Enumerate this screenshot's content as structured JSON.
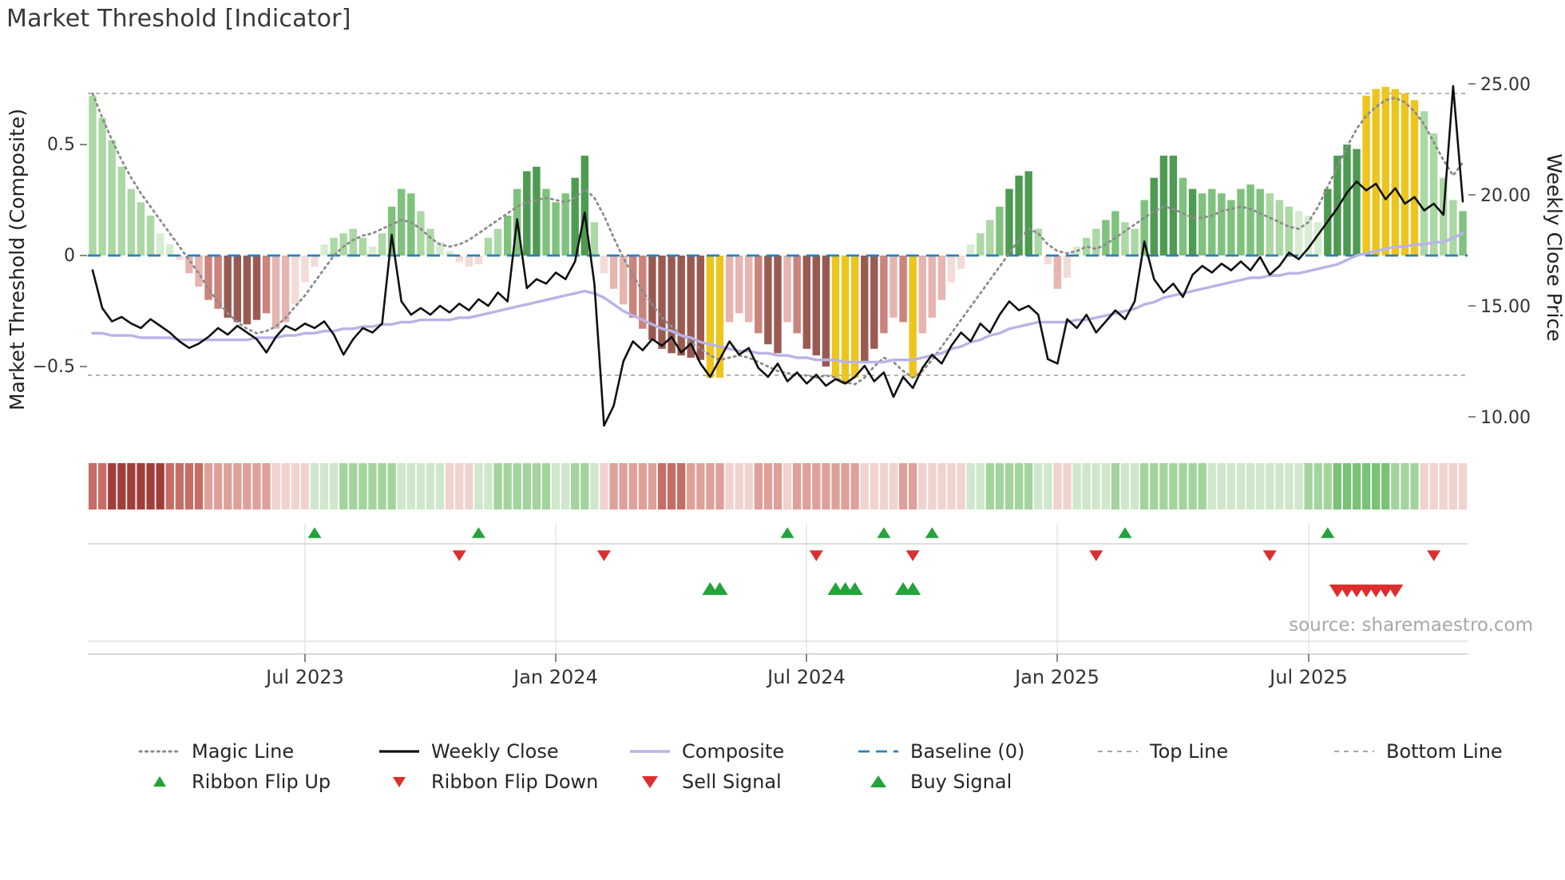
{
  "title": "Market Threshold [Indicator]",
  "source": "source: sharemaestro.com",
  "axes": {
    "left_label": "Market Threshold (Composite)",
    "right_label": "Weekly Close Price",
    "left_ticks": [
      "0.5",
      "0",
      "−0.5"
    ],
    "right_ticks": [
      "25.00",
      "20.00",
      "15.00",
      "10.00"
    ]
  },
  "legend": [
    {
      "label": "Magic Line"
    },
    {
      "label": "Weekly Close"
    },
    {
      "label": "Composite"
    },
    {
      "label": "Baseline (0)"
    },
    {
      "label": "Top Line"
    },
    {
      "label": "Bottom Line"
    },
    {
      "label": "Ribbon Flip Up"
    },
    {
      "label": "Ribbon Flip Down"
    },
    {
      "label": "Sell Signal"
    },
    {
      "label": "Buy Signal"
    }
  ],
  "colors": {
    "bar": {
      "g1": "#d7ecd1",
      "g2": "#abd8a4",
      "g3": "#7fc27d",
      "g4": "#4d9b51",
      "r1": "#f3dbd8",
      "r2": "#e7b4b0",
      "r3": "#cb837d",
      "r4": "#9a5a52",
      "gold": "#eec51d"
    },
    "ribbon": {
      "g1": "#cfe7ca",
      "g2": "#a3d49d",
      "g3": "#79c276",
      "r1": "#f0d2cf",
      "r2": "#dfa09a",
      "r3": "#c66d66",
      "r4": "#a23e39"
    },
    "weekly_close": "#111111",
    "magic_line": "#8c8c8c",
    "composite_line": "#b9b3e6",
    "baseline": "#2f7fb5",
    "top_bottom_line": "#9a9a9a",
    "buy_green": "#23a33a",
    "sell_red": "#dd2e2e",
    "grid": "#e3e3e3"
  },
  "chart_data": {
    "type": "combo",
    "description": "Weekly composite-threshold histogram with dotted magic line and composite line (left axis), weekly close price line (right axis), momentum ribbon heatmap strip, ribbon-flip and buy/sell signal markers",
    "weeks": 143,
    "x_range": "Feb 2023 – Oct 2025",
    "ylim_left": [
      -0.85,
      0.8
    ],
    "ylim_right": [
      8.8,
      25.5
    ],
    "baseline": 0,
    "top_line": 0.73,
    "bottom_line": -0.54,
    "x_tick_labels": [
      "Jul 2023",
      "Jan 2024",
      "Jul 2024",
      "Jan 2025",
      "Jul 2025"
    ],
    "x_tick_weeks": [
      22,
      48,
      74,
      100,
      126
    ],
    "histogram": {
      "values": [
        0.72,
        0.62,
        0.52,
        0.4,
        0.3,
        0.24,
        0.18,
        0.1,
        0.05,
        -0.02,
        -0.08,
        -0.14,
        -0.2,
        -0.24,
        -0.28,
        -0.3,
        -0.31,
        -0.29,
        -0.26,
        -0.33,
        -0.3,
        -0.22,
        -0.12,
        -0.05,
        0.05,
        0.08,
        0.1,
        0.12,
        0.08,
        0.04,
        0.1,
        0.22,
        0.3,
        0.28,
        0.2,
        0.12,
        0.06,
        0.02,
        -0.03,
        -0.05,
        -0.04,
        0.08,
        0.12,
        0.18,
        0.3,
        0.38,
        0.4,
        0.3,
        0.24,
        0.28,
        0.35,
        0.45,
        0.15,
        -0.08,
        -0.15,
        -0.22,
        -0.28,
        -0.33,
        -0.38,
        -0.42,
        -0.44,
        -0.45,
        -0.46,
        -0.47,
        -0.55,
        -0.55,
        -0.3,
        -0.26,
        -0.3,
        -0.35,
        -0.4,
        -0.44,
        -0.3,
        -0.35,
        -0.42,
        -0.45,
        -0.5,
        -0.55,
        -0.58,
        -0.55,
        -0.48,
        -0.42,
        -0.35,
        -0.28,
        -0.3,
        -0.55,
        -0.35,
        -0.28,
        -0.2,
        -0.12,
        -0.06,
        0.05,
        0.1,
        0.16,
        0.22,
        0.3,
        0.36,
        0.38,
        0.12,
        -0.04,
        -0.15,
        -0.1,
        0.04,
        0.08,
        0.12,
        0.16,
        0.2,
        0.15,
        0.12,
        0.25,
        0.35,
        0.45,
        0.45,
        0.35,
        0.3,
        0.28,
        0.3,
        0.28,
        0.25,
        0.3,
        0.32,
        0.3,
        0.28,
        0.25,
        0.22,
        0.2,
        0.18,
        0.15,
        0.3,
        0.45,
        0.5,
        0.48,
        0.72,
        0.75,
        0.76,
        0.75,
        0.73,
        0.7,
        0.65,
        0.55,
        0.35,
        0.25,
        0.2
      ],
      "colors": [
        "g2",
        "g2",
        "g2",
        "g2",
        "g2",
        "g2",
        "g2",
        "g1",
        "g1",
        "r1",
        "r2",
        "r2",
        "r3",
        "r3",
        "r4",
        "r4",
        "r4",
        "r4",
        "r3",
        "r2",
        "r2",
        "r1",
        "r1",
        "r1",
        "g1",
        "g2",
        "g2",
        "g2",
        "g2",
        "g1",
        "g2",
        "g3",
        "g3",
        "g3",
        "g2",
        "g2",
        "g1",
        "g1",
        "r1",
        "r1",
        "r1",
        "g2",
        "g2",
        "g3",
        "g3",
        "g4",
        "g4",
        "g3",
        "g3",
        "g3",
        "g4",
        "g4",
        "g2",
        "r1",
        "r2",
        "r2",
        "r3",
        "r3",
        "r4",
        "r4",
        "r4",
        "r4",
        "r4",
        "r4",
        "gold",
        "gold",
        "r2",
        "r2",
        "r2",
        "r3",
        "r4",
        "r4",
        "r2",
        "r3",
        "r4",
        "r4",
        "r4",
        "gold",
        "gold",
        "gold",
        "r4",
        "r4",
        "r3",
        "r2",
        "r3",
        "gold",
        "r2",
        "r2",
        "r2",
        "r1",
        "r1",
        "g1",
        "g2",
        "g2",
        "g3",
        "g4",
        "g4",
        "g4",
        "g2",
        "r1",
        "r2",
        "r1",
        "g1",
        "g2",
        "g2",
        "g3",
        "g3",
        "g2",
        "g2",
        "g3",
        "g4",
        "g4",
        "g4",
        "g3",
        "g4",
        "g3",
        "g3",
        "g3",
        "g3",
        "g3",
        "g3",
        "g3",
        "g2",
        "g2",
        "g2",
        "g1",
        "g1",
        "g1",
        "g4",
        "g4",
        "g4",
        "g4",
        "gold",
        "gold",
        "gold",
        "gold",
        "gold",
        "gold",
        "g2",
        "g2",
        "g2",
        "g2",
        "g3"
      ]
    },
    "weekly_close": [
      16.6,
      14.9,
      14.3,
      14.5,
      14.2,
      14.0,
      14.4,
      14.1,
      13.8,
      13.4,
      13.1,
      13.3,
      13.6,
      14.0,
      13.7,
      14.1,
      13.8,
      13.5,
      12.9,
      13.6,
      14.1,
      13.9,
      14.2,
      14.0,
      14.3,
      13.7,
      12.8,
      13.5,
      14.0,
      13.8,
      14.2,
      18.2,
      15.2,
      14.6,
      14.9,
      14.6,
      15.0,
      14.7,
      15.1,
      14.8,
      15.3,
      15.0,
      15.6,
      15.2,
      18.9,
      15.8,
      16.2,
      16.0,
      16.5,
      16.2,
      17.0,
      19.2,
      16.0,
      9.6,
      10.5,
      12.5,
      13.4,
      13.0,
      13.5,
      13.2,
      13.6,
      12.9,
      13.3,
      12.4,
      11.8,
      12.6,
      13.4,
      12.8,
      13.1,
      12.2,
      11.8,
      12.4,
      11.6,
      12.0,
      11.5,
      11.9,
      11.4,
      11.7,
      11.5,
      11.8,
      12.3,
      11.6,
      12.0,
      10.9,
      11.8,
      11.3,
      12.2,
      12.8,
      12.4,
      13.2,
      13.8,
      13.4,
      14.2,
      13.8,
      14.6,
      15.2,
      14.8,
      15.0,
      14.6,
      12.6,
      12.4,
      14.4,
      14.0,
      14.6,
      13.8,
      14.3,
      14.8,
      14.4,
      15.2,
      17.9,
      16.2,
      15.6,
      16.0,
      15.4,
      16.4,
      16.8,
      16.5,
      16.9,
      16.6,
      17.0,
      16.6,
      17.2,
      16.4,
      16.8,
      17.4,
      17.1,
      17.6,
      18.2,
      18.8,
      19.4,
      20.1,
      20.6,
      20.2,
      20.5,
      19.8,
      20.3,
      19.6,
      19.9,
      19.3,
      19.6,
      19.1,
      24.9,
      19.7
    ],
    "magic_line": [
      0.73,
      0.62,
      0.52,
      0.43,
      0.35,
      0.28,
      0.22,
      0.16,
      0.1,
      0.04,
      -0.02,
      -0.08,
      -0.15,
      -0.21,
      -0.26,
      -0.3,
      -0.33,
      -0.35,
      -0.34,
      -0.32,
      -0.28,
      -0.23,
      -0.18,
      -0.12,
      -0.06,
      0.0,
      0.04,
      0.07,
      0.09,
      0.1,
      0.12,
      0.14,
      0.16,
      0.15,
      0.12,
      0.08,
      0.05,
      0.04,
      0.05,
      0.07,
      0.1,
      0.13,
      0.16,
      0.19,
      0.22,
      0.24,
      0.25,
      0.26,
      0.25,
      0.24,
      0.26,
      0.3,
      0.26,
      0.18,
      0.08,
      -0.01,
      -0.09,
      -0.16,
      -0.22,
      -0.28,
      -0.32,
      -0.36,
      -0.39,
      -0.42,
      -0.45,
      -0.47,
      -0.46,
      -0.45,
      -0.46,
      -0.48,
      -0.5,
      -0.52,
      -0.53,
      -0.54,
      -0.54,
      -0.55,
      -0.54,
      -0.55,
      -0.57,
      -0.58,
      -0.55,
      -0.5,
      -0.46,
      -0.48,
      -0.52,
      -0.55,
      -0.52,
      -0.47,
      -0.41,
      -0.35,
      -0.29,
      -0.23,
      -0.17,
      -0.11,
      -0.05,
      0.01,
      0.07,
      0.12,
      0.1,
      0.05,
      0.02,
      0.01,
      0.02,
      0.04,
      0.03,
      0.05,
      0.08,
      0.11,
      0.14,
      0.17,
      0.2,
      0.22,
      0.21,
      0.19,
      0.17,
      0.17,
      0.18,
      0.2,
      0.21,
      0.22,
      0.21,
      0.19,
      0.17,
      0.15,
      0.13,
      0.12,
      0.15,
      0.22,
      0.31,
      0.4,
      0.49,
      0.57,
      0.63,
      0.67,
      0.7,
      0.71,
      0.69,
      0.65,
      0.59,
      0.51,
      0.43,
      0.36,
      0.42
    ],
    "composite_line": [
      -0.35,
      -0.35,
      -0.36,
      -0.36,
      -0.36,
      -0.37,
      -0.37,
      -0.37,
      -0.37,
      -0.38,
      -0.38,
      -0.38,
      -0.38,
      -0.38,
      -0.38,
      -0.38,
      -0.38,
      -0.37,
      -0.37,
      -0.37,
      -0.36,
      -0.36,
      -0.35,
      -0.35,
      -0.34,
      -0.34,
      -0.33,
      -0.33,
      -0.32,
      -0.32,
      -0.31,
      -0.31,
      -0.3,
      -0.3,
      -0.29,
      -0.29,
      -0.29,
      -0.29,
      -0.28,
      -0.28,
      -0.27,
      -0.26,
      -0.25,
      -0.24,
      -0.23,
      -0.22,
      -0.21,
      -0.2,
      -0.19,
      -0.18,
      -0.17,
      -0.16,
      -0.17,
      -0.19,
      -0.22,
      -0.25,
      -0.27,
      -0.29,
      -0.31,
      -0.33,
      -0.34,
      -0.36,
      -0.37,
      -0.39,
      -0.4,
      -0.41,
      -0.42,
      -0.43,
      -0.43,
      -0.44,
      -0.44,
      -0.45,
      -0.45,
      -0.46,
      -0.46,
      -0.47,
      -0.47,
      -0.47,
      -0.48,
      -0.48,
      -0.48,
      -0.48,
      -0.48,
      -0.47,
      -0.47,
      -0.47,
      -0.46,
      -0.45,
      -0.44,
      -0.42,
      -0.41,
      -0.39,
      -0.38,
      -0.36,
      -0.35,
      -0.33,
      -0.32,
      -0.31,
      -0.3,
      -0.3,
      -0.3,
      -0.3,
      -0.29,
      -0.29,
      -0.28,
      -0.27,
      -0.26,
      -0.25,
      -0.24,
      -0.22,
      -0.21,
      -0.19,
      -0.18,
      -0.17,
      -0.16,
      -0.15,
      -0.14,
      -0.13,
      -0.12,
      -0.11,
      -0.1,
      -0.1,
      -0.09,
      -0.09,
      -0.08,
      -0.08,
      -0.07,
      -0.06,
      -0.05,
      -0.04,
      -0.02,
      0.0,
      0.01,
      0.02,
      0.03,
      0.04,
      0.04,
      0.05,
      0.05,
      0.06,
      0.06,
      0.08,
      0.1
    ],
    "ribbon": [
      "r3",
      "r3",
      "r4",
      "r4",
      "r4",
      "r4",
      "r4",
      "r4",
      "r3",
      "r3",
      "r3",
      "r3",
      "r2",
      "r2",
      "r2",
      "r2",
      "r2",
      "r2",
      "r2",
      "r1",
      "r1",
      "r1",
      "r1",
      "g1",
      "g1",
      "g1",
      "g2",
      "g2",
      "g2",
      "g2",
      "g2",
      "g2",
      "g1",
      "g1",
      "g1",
      "g1",
      "g1",
      "r1",
      "r1",
      "r1",
      "g1",
      "g1",
      "g2",
      "g2",
      "g2",
      "g2",
      "g2",
      "g2",
      "g1",
      "g1",
      "g2",
      "g2",
      "g1",
      "r1",
      "r2",
      "r2",
      "r2",
      "r2",
      "r2",
      "r3",
      "r3",
      "r3",
      "r2",
      "r2",
      "r2",
      "r2",
      "r1",
      "r1",
      "r1",
      "r2",
      "r2",
      "r2",
      "r1",
      "r2",
      "r2",
      "r2",
      "r2",
      "r2",
      "r2",
      "r2",
      "r1",
      "r1",
      "r1",
      "r1",
      "r2",
      "r2",
      "r1",
      "r1",
      "r1",
      "r1",
      "r1",
      "g1",
      "g1",
      "g2",
      "g2",
      "g2",
      "g2",
      "g2",
      "g1",
      "g1",
      "r1",
      "r1",
      "g1",
      "g1",
      "g1",
      "g1",
      "g2",
      "g1",
      "g1",
      "g2",
      "g2",
      "g2",
      "g2",
      "g2",
      "g2",
      "g2",
      "g1",
      "g1",
      "g1",
      "g1",
      "g1",
      "g1",
      "g1",
      "g1",
      "g1",
      "g1",
      "g2",
      "g2",
      "g2",
      "g3",
      "g3",
      "g3",
      "g3",
      "g3",
      "g3",
      "g2",
      "g2",
      "g2",
      "r1",
      "r1",
      "r1",
      "r1",
      "r1"
    ],
    "signals": {
      "ribbon_flip_up": [
        23,
        40,
        72,
        82,
        87,
        107,
        128
      ],
      "ribbon_flip_down": [
        38,
        53,
        75,
        85,
        104,
        122,
        139
      ],
      "buy": [
        64,
        65,
        77,
        78,
        79,
        84,
        85
      ],
      "sell": [
        129,
        130,
        131,
        132,
        133,
        134,
        135
      ]
    }
  }
}
